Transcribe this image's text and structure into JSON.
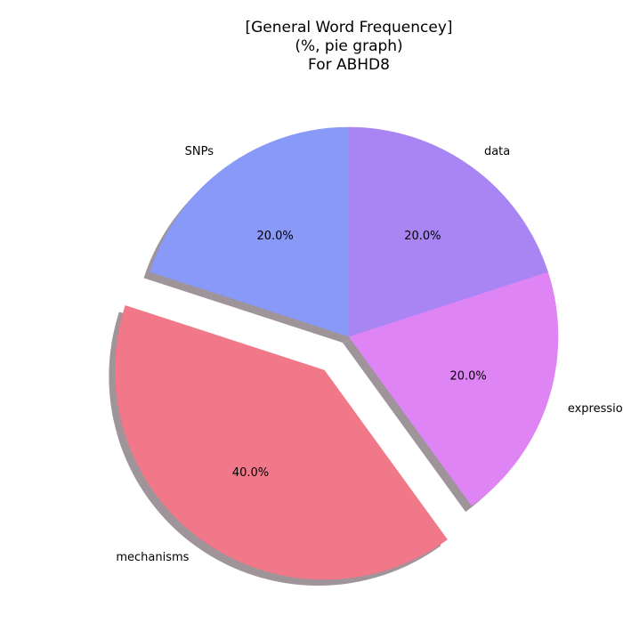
{
  "chart_data": {
    "type": "pie",
    "title_lines": [
      "[General Word Frequencey]",
      "(%, pie graph)",
      "For ABHD8"
    ],
    "slices": [
      {
        "label": "SNPs",
        "value": 20.0,
        "pct_label": "20.0%",
        "color": "#8899f7",
        "explode": false
      },
      {
        "label": "mechanisms",
        "value": 40.0,
        "pct_label": "40.0%",
        "color": "#f07888",
        "explode": true
      },
      {
        "label": "expression",
        "value": 20.0,
        "pct_label": "20.0%",
        "color": "#df84f4",
        "explode": false
      },
      {
        "label": "data",
        "value": 20.0,
        "pct_label": "20.0%",
        "color": "#a985f4",
        "explode": false
      }
    ],
    "start_angle_deg": 90,
    "direction": "counterclockwise",
    "shadow": true,
    "shadow_color": "#9e9499"
  }
}
